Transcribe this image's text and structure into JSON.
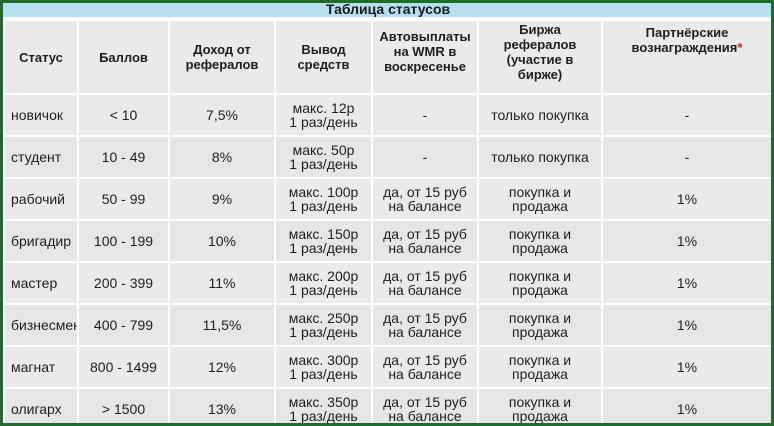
{
  "table": {
    "caption": "Таблица статусов",
    "headers": [
      {
        "line1": "Статус",
        "line2": "",
        "line3": ""
      },
      {
        "line1": "Баллов",
        "line2": "",
        "line3": ""
      },
      {
        "line1": "Доход от",
        "line2": "рефералов",
        "line3": ""
      },
      {
        "line1": "Вывод",
        "line2": "средств",
        "line3": ""
      },
      {
        "line1": "Автовыплаты",
        "line2": "на WMR в",
        "line3": "воскресенье"
      },
      {
        "line1": "Биржа",
        "line2": "рефералов",
        "line3": "(участие в",
        "line4": "бирже)"
      },
      {
        "line1": "Партнёрские",
        "line2": "вознаграждения",
        "asterisk": "*"
      }
    ],
    "rows": [
      {
        "status": "новичок",
        "points": "< 10",
        "income": "7,5%",
        "withdraw1": "макс. 12р",
        "withdraw2": "1 раз/день",
        "auto1": "-",
        "auto2": "",
        "exchange1": "только покупка",
        "exchange2": "",
        "reward": "-"
      },
      {
        "status": "студент",
        "points": "10 - 49",
        "income": "8%",
        "withdraw1": "макс. 50р",
        "withdraw2": "1 раз/день",
        "auto1": "-",
        "auto2": "",
        "exchange1": "только покупка",
        "exchange2": "",
        "reward": "-"
      },
      {
        "status": "рабочий",
        "points": "50 - 99",
        "income": "9%",
        "withdraw1": "макс. 100р",
        "withdraw2": "1 раз/день",
        "auto1": "да, от 15 руб",
        "auto2": "на балансе",
        "exchange1": "покупка и",
        "exchange2": "продажа",
        "reward": "1%"
      },
      {
        "status": "бригадир",
        "points": "100 - 199",
        "income": "10%",
        "withdraw1": "макс. 150р",
        "withdraw2": "1 раз/день",
        "auto1": "да, от 15 руб",
        "auto2": "на балансе",
        "exchange1": "покупка и",
        "exchange2": "продажа",
        "reward": "1%"
      },
      {
        "status": "мастер",
        "points": "200 - 399",
        "income": "11%",
        "withdraw1": "макс. 200р",
        "withdraw2": "1 раз/день",
        "auto1": "да, от 15 руб",
        "auto2": "на балансе",
        "exchange1": "покупка и",
        "exchange2": "продажа",
        "reward": "1%"
      },
      {
        "status": "бизнесмен",
        "points": "400 - 799",
        "income": "11,5%",
        "withdraw1": "макс. 250р",
        "withdraw2": "1 раз/день",
        "auto1": "да, от 15 руб",
        "auto2": "на балансе",
        "exchange1": "покупка и",
        "exchange2": "продажа",
        "reward": "1%"
      },
      {
        "status": "магнат",
        "points": "800 - 1499",
        "income": "12%",
        "withdraw1": "макс. 300р",
        "withdraw2": "1 раз/день",
        "auto1": "да, от 15 руб",
        "auto2": "на балансе",
        "exchange1": "покупка и",
        "exchange2": "продажа",
        "reward": "1%"
      },
      {
        "status": "олигарх",
        "points": "> 1500",
        "income": "13%",
        "withdraw1": "макс. 350р",
        "withdraw2": "1 раз/день",
        "auto1": "да, от 15 руб",
        "auto2": "на балансе",
        "exchange1": "покупка и",
        "exchange2": "продажа",
        "reward": "1%"
      }
    ]
  },
  "colors": {
    "frame_border": "#1f6a2c",
    "caption_background": "#b7dff0",
    "cell_background": "#eaeaea",
    "asterisk": "#cc2222"
  }
}
